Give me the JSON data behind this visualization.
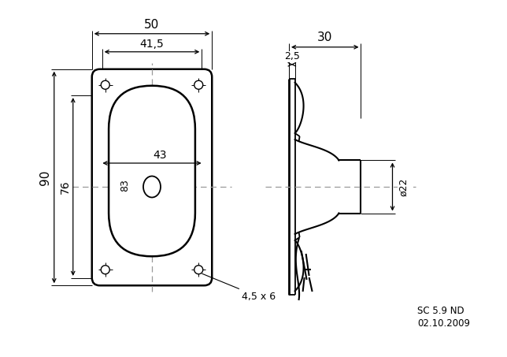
{
  "bg_color": "#ffffff",
  "line_color": "#000000",
  "dash_color": "#999999",
  "fig_width": 6.44,
  "fig_height": 4.53,
  "annotations": {
    "dim_50": "50",
    "dim_41_5": "41,5",
    "dim_90": "90",
    "dim_76": "76",
    "dim_43": "43",
    "dim_83": "83",
    "dim_4_5x6": "4,5 x 6",
    "dim_30": "30",
    "dim_2_5": "2,5",
    "dim_22": "ø22",
    "label_sc": "SC 5.9 ND",
    "label_date": "02.10.2009"
  }
}
